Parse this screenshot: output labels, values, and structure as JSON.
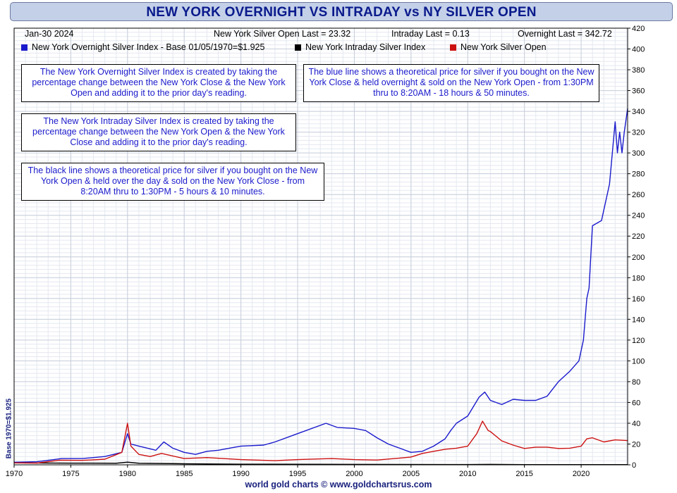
{
  "title": "NEW YORK OVERNIGHT VS INTRADAY vs NY SILVER OPEN",
  "header": {
    "date": "Jan-30  2024",
    "silver_open": "New York Silver Open Last = 23.32",
    "intraday": "Intraday Last = 0.13",
    "overnight": "Overnight Last = 342.72"
  },
  "legend": [
    {
      "label": "New York Overnight Silver Index - Base 01/05/1970=$1.925",
      "color": "#1a1acc"
    },
    {
      "label": "New York Intraday Silver Index",
      "color": "#000000"
    },
    {
      "label": "New York Silver Open",
      "color": "#cc1111"
    }
  ],
  "notes": {
    "overnight_def": "The New York Overnight Silver Index is created by taking the percentage change between the New York Close & the New York Open and adding it to the prior day's reading.",
    "blue_line": "The blue line shows a theoretical price for silver if you bought on the New York Close & held overnight & sold on the New York Open - from 1:30PM thru to 8:20AM - 18 hours & 50 minutes.",
    "intraday_def": "The New York Intraday Silver Index is created by taking the percentage change between the New York Open & the New York Close and adding it to the prior day's reading.",
    "black_line": "The black line shows a theoretical price for silver if you bought on the New York Open & held over the day & sold on the New York Close - from 8:20AM thru to 1:30PM - 5 hours & 10 minutes."
  },
  "footer": "world gold charts © www.goldchartsrus.com",
  "y_axis_left_label": "Base 1970=$1.925",
  "chart_data": {
    "type": "line",
    "title": "NEW YORK OVERNIGHT VS INTRADAY vs NY SILVER OPEN",
    "xlim": [
      1970,
      2024.1
    ],
    "ylim": [
      0,
      420
    ],
    "x_ticks": [
      1970,
      1975,
      1980,
      1985,
      1990,
      1995,
      2000,
      2005,
      2010,
      2015,
      2020
    ],
    "y_ticks": [
      0,
      20,
      40,
      60,
      80,
      100,
      120,
      140,
      160,
      180,
      200,
      220,
      240,
      260,
      280,
      300,
      320,
      340,
      360,
      380,
      400,
      420
    ],
    "grid": true,
    "y_axis_side": "right",
    "series": [
      {
        "name": "New York Overnight Silver Index - Base 01/05/1970=$1.925",
        "color": "#1a1acc",
        "x": [
          1970,
          1972,
          1973.5,
          1974.2,
          1976,
          1978,
          1979.5,
          1980.0,
          1980.3,
          1981,
          1982.5,
          1983.2,
          1984,
          1985,
          1986,
          1987,
          1988,
          1990,
          1992,
          1993,
          1995,
          1997.5,
          1998.5,
          2000,
          2001,
          2002,
          2003,
          2004,
          2005,
          2006,
          2007,
          2008,
          2008.5,
          2009,
          2010,
          2011,
          2011.5,
          2012,
          2013,
          2014,
          2015,
          2016,
          2017,
          2018,
          2019,
          2019.8,
          2020.2,
          2020.5,
          2020.7,
          2021,
          2021.8,
          2022,
          2022.5,
          2023,
          2023.2,
          2023.4,
          2023.6,
          2023.8,
          2024.0,
          2024.1
        ],
        "y": [
          2.5,
          3,
          5,
          6,
          6,
          8,
          12,
          30,
          20,
          18,
          14,
          22,
          16,
          12,
          10,
          13,
          14,
          18,
          19,
          22,
          30,
          40,
          36,
          35,
          33,
          26,
          20,
          16,
          12,
          13,
          18,
          25,
          33,
          40,
          47,
          65,
          70,
          62,
          58,
          63,
          62,
          62,
          66,
          80,
          90,
          100,
          120,
          160,
          170,
          230,
          235,
          245,
          270,
          330,
          300,
          320,
          300,
          320,
          335,
          342.72
        ]
      },
      {
        "name": "New York Intraday Silver Index",
        "color": "#000000",
        "x": [
          1970,
          1975,
          1979,
          1980,
          1981,
          1985,
          1990,
          2000,
          2010,
          2012,
          2015,
          2020,
          2024.1
        ],
        "y": [
          1.8,
          1.6,
          1.5,
          2.5,
          1.5,
          1.0,
          0.6,
          0.4,
          0.3,
          0.4,
          0.2,
          0.15,
          0.13
        ]
      },
      {
        "name": "New York Silver Open",
        "color": "#cc1111",
        "x": [
          1970,
          1972,
          1974,
          1976,
          1978,
          1979.5,
          1980.0,
          1980.3,
          1981,
          1982,
          1983,
          1985,
          1987,
          1990,
          1993,
          1995,
          1998,
          2000,
          2002,
          2004,
          2005,
          2006,
          2007,
          2008,
          2009,
          2010,
          2010.8,
          2011.3,
          2011.8,
          2012,
          2013,
          2014,
          2015,
          2016,
          2017,
          2018,
          2019,
          2020,
          2020.5,
          2021,
          2022,
          2023,
          2024.1
        ],
        "y": [
          1.9,
          1.7,
          4.5,
          4.3,
          5.4,
          12,
          40,
          18,
          10,
          8,
          11,
          6,
          7,
          5,
          4,
          5,
          6,
          5,
          4.6,
          6.5,
          7.5,
          11,
          13,
          15,
          16,
          18,
          30,
          42,
          33,
          32,
          23,
          19,
          15.7,
          17,
          17,
          15.7,
          16,
          18,
          25,
          26,
          22,
          24,
          23.32
        ]
      }
    ]
  }
}
